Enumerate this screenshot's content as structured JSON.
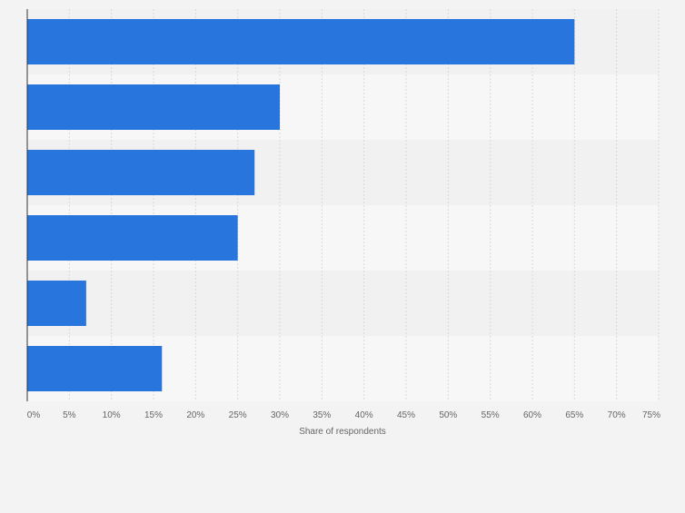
{
  "chart_data": {
    "type": "bar",
    "orientation": "horizontal",
    "categories": [
      "",
      "",
      "",
      "",
      "",
      ""
    ],
    "values": [
      65,
      30,
      27,
      25,
      7,
      16
    ],
    "xlabel": "Share of respondents",
    "ylabel": "",
    "xlim": [
      0,
      75
    ],
    "x_ticks": [
      "0%",
      "5%",
      "10%",
      "15%",
      "20%",
      "25%",
      "30%",
      "35%",
      "40%",
      "45%",
      "50%",
      "55%",
      "60%",
      "65%",
      "70%",
      "75%"
    ],
    "grid": true,
    "legend": "none",
    "colors": {
      "bar": "#2876dd",
      "background": "#f3f3f3",
      "band_light": "#f7f7f7",
      "band_dark": "#f1f1f1",
      "grid": "#d9d9d9",
      "axis": "#333333",
      "tick_text": "#666666"
    }
  }
}
